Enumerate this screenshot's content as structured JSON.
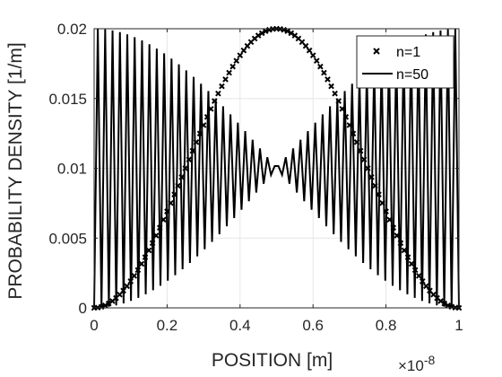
{
  "chart_data": {
    "type": "line",
    "xlabel": "POSITION [m]",
    "ylabel": "PROBABILITY DENSITY [1/m]",
    "x_exponent_label": "×10",
    "x_exponent_power": "-8",
    "x_scale_factor": 1e-08,
    "xlim": [
      0,
      1
    ],
    "ylim": [
      0,
      0.02
    ],
    "xticks": [
      0,
      0.2,
      0.4,
      0.6,
      0.8,
      1
    ],
    "xtick_labels": [
      "0",
      "0.2",
      "0.4",
      "0.6",
      "0.8",
      "1"
    ],
    "yticks": [
      0,
      0.005,
      0.01,
      0.015,
      0.02
    ],
    "ytick_labels": [
      "0",
      "0.005",
      "0.01",
      "0.015",
      "0.02"
    ],
    "grid": true,
    "legend_position": "top-right",
    "well_width": 1,
    "amplitude": 0.02,
    "series": [
      {
        "name": "n=1",
        "quantum_number": 1,
        "marker": "x",
        "line": "none",
        "points": 101,
        "color": "#000000"
      },
      {
        "name": "n=50",
        "quantum_number": 50,
        "marker": "none",
        "line": "solid",
        "points": 100,
        "color": "#000000"
      }
    ]
  }
}
